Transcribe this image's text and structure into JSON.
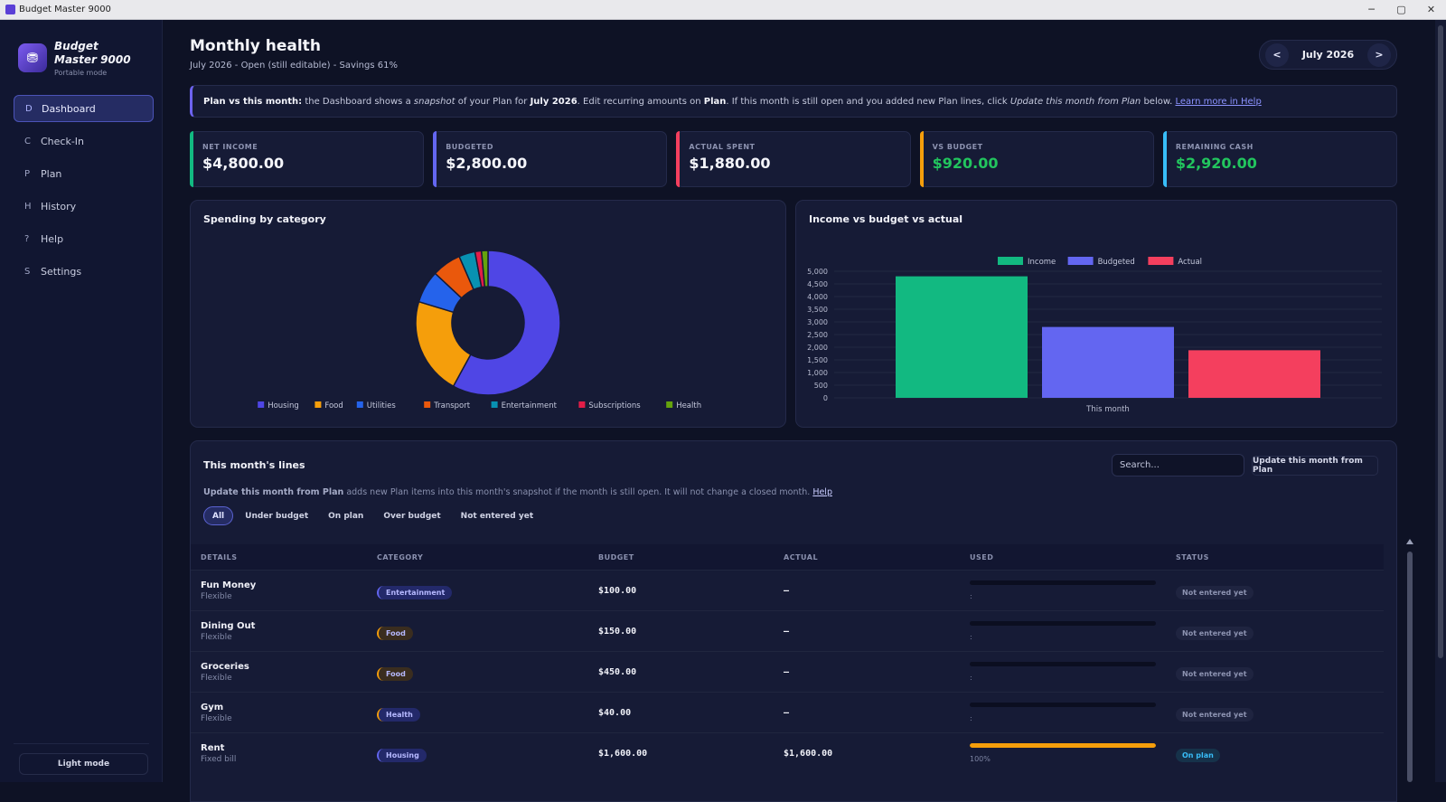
{
  "window": {
    "title": "Budget Master 9000",
    "controls": [
      "─",
      "▢",
      "✕"
    ]
  },
  "sidebar": {
    "brand_name": "Budget Master 9000",
    "brand_sub": "Portable mode",
    "items": [
      {
        "key": "D",
        "label": "Dashboard",
        "active": true
      },
      {
        "key": "C",
        "label": "Check-In"
      },
      {
        "key": "P",
        "label": "Plan"
      },
      {
        "key": "H",
        "label": "History"
      },
      {
        "key": "?",
        "label": "Help"
      },
      {
        "key": "S",
        "label": "Settings"
      }
    ],
    "light_mode_label": "Light mode"
  },
  "header": {
    "title": "Monthly health",
    "subtitle": "July 2026 - Open (still editable) - Savings 61%",
    "month_label": "July 2026",
    "prev_label": "<",
    "next_label": ">"
  },
  "info": {
    "lead": "Plan vs this month:",
    "t1": " the Dashboard shows a ",
    "em1": "snapshot",
    "t2": " of your Plan for ",
    "b1": "July 2026",
    "t3": ". Edit recurring amounts on ",
    "b2": "Plan",
    "t4": ". If this month is still open and you added new Plan lines, click ",
    "em2": "Update this month from Plan",
    "t5": " below. ",
    "link": "Learn more in Help"
  },
  "kpis": [
    {
      "label": "NET INCOME",
      "value": "$4,800.00"
    },
    {
      "label": "BUDGETED",
      "value": "$2,800.00"
    },
    {
      "label": "ACTUAL SPENT",
      "value": "$1,880.00"
    },
    {
      "label": "VS BUDGET",
      "value": "$920.00"
    },
    {
      "label": "REMAINING CASH",
      "value": "$2,920.00"
    }
  ],
  "charts": {
    "spending_title": "Spending by category",
    "income_title": "Income vs budget vs actual"
  },
  "chart_data": [
    {
      "type": "pie",
      "title": "Spending by category",
      "categories": [
        "Housing",
        "Food",
        "Utilities",
        "Transport",
        "Entertainment",
        "Subscriptions",
        "Health"
      ],
      "values": [
        1600,
        600,
        200,
        180,
        100,
        40,
        40
      ],
      "colors": [
        "#4f46e5",
        "#f59e0b",
        "#2563eb",
        "#ea580c",
        "#0891b2",
        "#e11d48",
        "#65a30d"
      ],
      "legend": "bottom"
    },
    {
      "type": "bar",
      "title": "Income vs budget vs actual",
      "categories": [
        "This month"
      ],
      "series": [
        {
          "name": "Income",
          "values": [
            4800
          ],
          "color": "#12b981"
        },
        {
          "name": "Budgeted",
          "values": [
            2800
          ],
          "color": "#6366f1"
        },
        {
          "name": "Actual",
          "values": [
            1880
          ],
          "color": "#f43f5e"
        }
      ],
      "ylim": [
        0,
        5000
      ],
      "yticks": [
        "5,000",
        "4,500",
        "4,000",
        "3,500",
        "3,000",
        "2,500",
        "2,000",
        "1,500",
        "1,000",
        "500",
        "0"
      ],
      "grid": true,
      "legend": "top"
    }
  ],
  "lines": {
    "title": "This month's lines",
    "search_placeholder": "Search...",
    "update_button": "Update this month from Plan",
    "hint_bold": "Update this month from Plan",
    "hint_text": " adds new Plan items into this month's snapshot if the month is still open. It will not change a closed month. ",
    "hint_link": "Help",
    "filters": [
      "All",
      "Under budget",
      "On plan",
      "Over budget",
      "Not entered yet"
    ],
    "columns": [
      "DETAILS",
      "CATEGORY",
      "BUDGET",
      "ACTUAL",
      "USED",
      "STATUS"
    ],
    "rows": [
      {
        "name": "Fun Money",
        "type": "Flexible",
        "category": "Entertainment",
        "budget": "$100.00",
        "actual": "—",
        "used_label": ":",
        "used_fraction": 0,
        "status": "Not entered yet"
      },
      {
        "name": "Dining Out",
        "type": "Flexible",
        "category": "Food",
        "budget": "$150.00",
        "actual": "—",
        "used_label": ":",
        "used_fraction": 0,
        "status": "Not entered yet"
      },
      {
        "name": "Groceries",
        "type": "Flexible",
        "category": "Food",
        "budget": "$450.00",
        "actual": "—",
        "used_label": ":",
        "used_fraction": 0,
        "status": "Not entered yet"
      },
      {
        "name": "Gym",
        "type": "Flexible",
        "category": "Health",
        "budget": "$40.00",
        "actual": "—",
        "used_label": ":",
        "used_fraction": 0,
        "status": "Not entered yet"
      },
      {
        "name": "Rent",
        "type": "Fixed bill",
        "category": "Housing",
        "budget": "$1,600.00",
        "actual": "$1,600.00",
        "used_label": "100%",
        "used_fraction": 1,
        "status": "On plan"
      }
    ]
  }
}
